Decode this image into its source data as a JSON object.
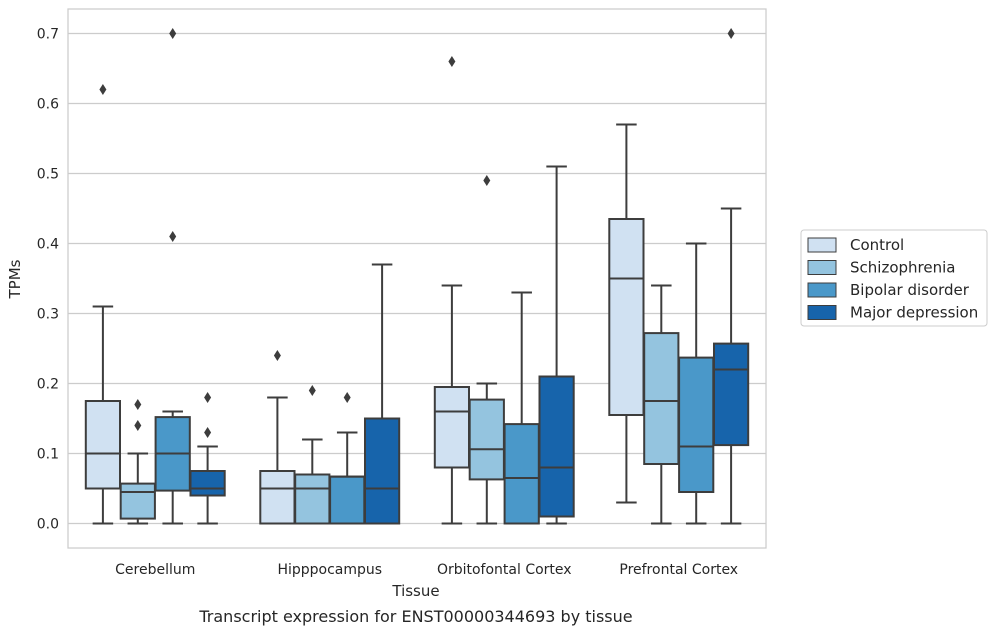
{
  "chart_data": {
    "type": "box",
    "title": "",
    "caption": "Transcript expression for ENST00000344693 by tissue",
    "xlabel": "Tissue",
    "ylabel": "TPMs",
    "ylim": [
      -0.035,
      0.735
    ],
    "yticks": [
      "0.0",
      "0.1",
      "0.2",
      "0.3",
      "0.4",
      "0.5",
      "0.6",
      "0.7"
    ],
    "grid": "horizontal",
    "legend_position": "right",
    "categories": [
      "Cerebellum",
      "Hipppocampus",
      "Orbitofontal Cortex",
      "Prefrontal Cortex"
    ],
    "series": [
      {
        "name": "Control",
        "color": "#d0e1f2",
        "boxes": [
          {
            "whislo": 0.0,
            "q1": 0.05,
            "med": 0.1,
            "q3": 0.175,
            "whishi": 0.31,
            "fliers": [
              0.62
            ]
          },
          {
            "whislo": 0.0,
            "q1": 0.0,
            "med": 0.05,
            "q3": 0.075,
            "whishi": 0.18,
            "fliers": [
              0.24
            ]
          },
          {
            "whislo": 0.0,
            "q1": 0.08,
            "med": 0.16,
            "q3": 0.195,
            "whishi": 0.34,
            "fliers": [
              0.66
            ]
          },
          {
            "whislo": 0.03,
            "q1": 0.155,
            "med": 0.35,
            "q3": 0.435,
            "whishi": 0.57,
            "fliers": []
          }
        ]
      },
      {
        "name": "Schizophrenia",
        "color": "#94c4df",
        "boxes": [
          {
            "whislo": 0.0,
            "q1": 0.007,
            "med": 0.045,
            "q3": 0.057,
            "whishi": 0.1,
            "fliers": [
              0.14,
              0.17
            ]
          },
          {
            "whislo": 0.0,
            "q1": 0.0,
            "med": 0.05,
            "q3": 0.07,
            "whishi": 0.12,
            "fliers": [
              0.19
            ]
          },
          {
            "whislo": 0.0,
            "q1": 0.063,
            "med": 0.106,
            "q3": 0.177,
            "whishi": 0.2,
            "fliers": [
              0.49
            ]
          },
          {
            "whislo": 0.0,
            "q1": 0.085,
            "med": 0.175,
            "q3": 0.272,
            "whishi": 0.34,
            "fliers": []
          }
        ]
      },
      {
        "name": "Bipolar disorder",
        "color": "#4a98c9",
        "boxes": [
          {
            "whislo": 0.0,
            "q1": 0.047,
            "med": 0.1,
            "q3": 0.152,
            "whishi": 0.16,
            "fliers": [
              0.41,
              0.7
            ]
          },
          {
            "whislo": 0.0,
            "q1": 0.0,
            "med": 0.067,
            "q3": 0.067,
            "whishi": 0.13,
            "fliers": [
              0.18
            ]
          },
          {
            "whislo": 0.0,
            "q1": 0.0,
            "med": 0.065,
            "q3": 0.142,
            "whishi": 0.33,
            "fliers": []
          },
          {
            "whislo": 0.0,
            "q1": 0.045,
            "med": 0.11,
            "q3": 0.237,
            "whishi": 0.4,
            "fliers": []
          }
        ]
      },
      {
        "name": "Major depression",
        "color": "#1764ab",
        "boxes": [
          {
            "whislo": 0.0,
            "q1": 0.04,
            "med": 0.05,
            "q3": 0.075,
            "whishi": 0.11,
            "fliers": [
              0.13,
              0.18
            ]
          },
          {
            "whislo": 0.0,
            "q1": 0.0,
            "med": 0.05,
            "q3": 0.15,
            "whishi": 0.37,
            "fliers": []
          },
          {
            "whislo": 0.0,
            "q1": 0.01,
            "med": 0.08,
            "q3": 0.21,
            "whishi": 0.51,
            "fliers": []
          },
          {
            "whislo": 0.0,
            "q1": 0.112,
            "med": 0.22,
            "q3": 0.257,
            "whishi": 0.45,
            "fliers": [
              0.7
            ]
          }
        ]
      }
    ]
  }
}
